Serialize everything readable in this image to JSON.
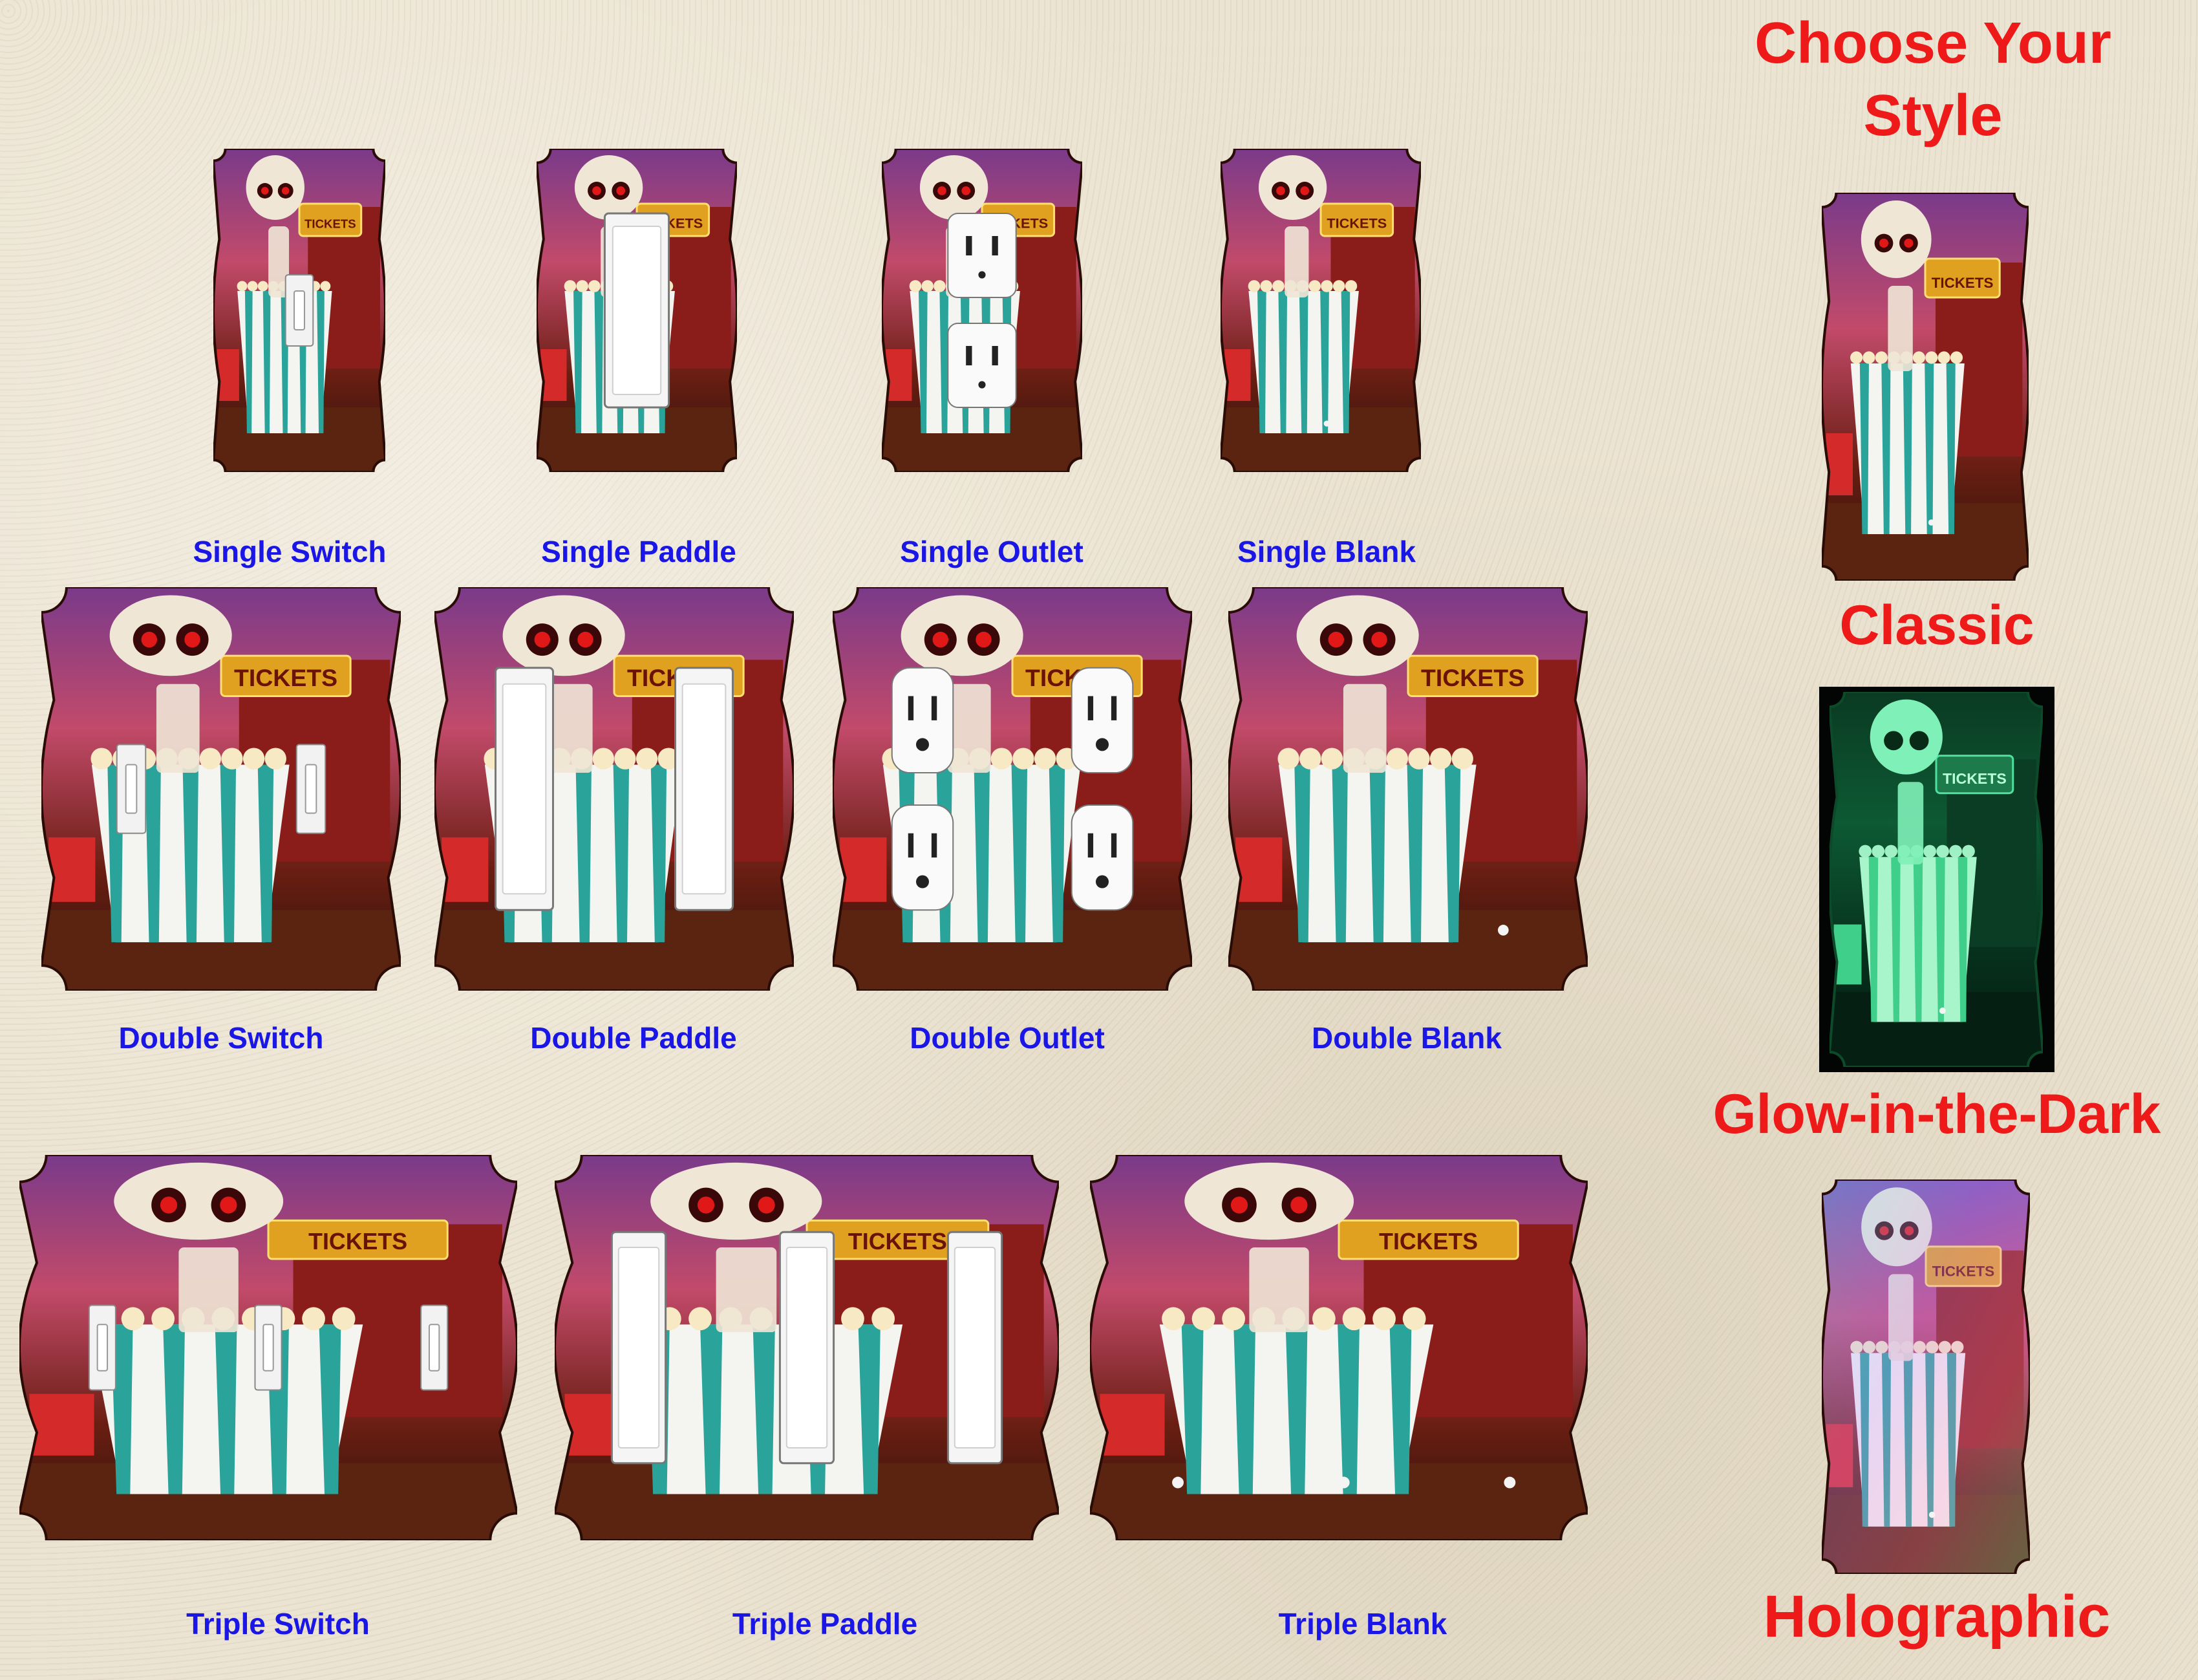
{
  "heading": {
    "line1": "Choose Your",
    "line2": "Style"
  },
  "styles": [
    {
      "label": "Classic",
      "icon": "classic-plate-thumbnail"
    },
    {
      "label": "Glow-in-the-Dark",
      "icon": "glow-plate-thumbnail"
    },
    {
      "label": "Holographic",
      "icon": "holographic-plate-thumbnail"
    }
  ],
  "products": {
    "single": [
      {
        "label": "Single Switch",
        "device": "toggle",
        "count": 1
      },
      {
        "label": "Single Paddle",
        "device": "paddle",
        "count": 1
      },
      {
        "label": "Single Outlet",
        "device": "outlet",
        "count": 1
      },
      {
        "label": "Single Blank",
        "device": "blank",
        "count": 1
      }
    ],
    "double": [
      {
        "label": "Double Switch",
        "device": "toggle",
        "count": 2
      },
      {
        "label": "Double Paddle",
        "device": "paddle",
        "count": 2
      },
      {
        "label": "Double Outlet",
        "device": "outlet",
        "count": 2
      },
      {
        "label": "Double Blank",
        "device": "blank",
        "count": 2
      }
    ],
    "triple": [
      {
        "label": "Triple Switch",
        "device": "toggle",
        "count": 3
      },
      {
        "label": "Triple Paddle",
        "device": "paddle",
        "count": 3
      },
      {
        "label": "Triple Blank",
        "device": "blank",
        "count": 3
      }
    ]
  },
  "artwork": {
    "sign_text": "TICKETS"
  },
  "colors": {
    "label_blue": "#1a16e6",
    "style_red": "#ee1a1a",
    "background": "#ece4d2"
  }
}
